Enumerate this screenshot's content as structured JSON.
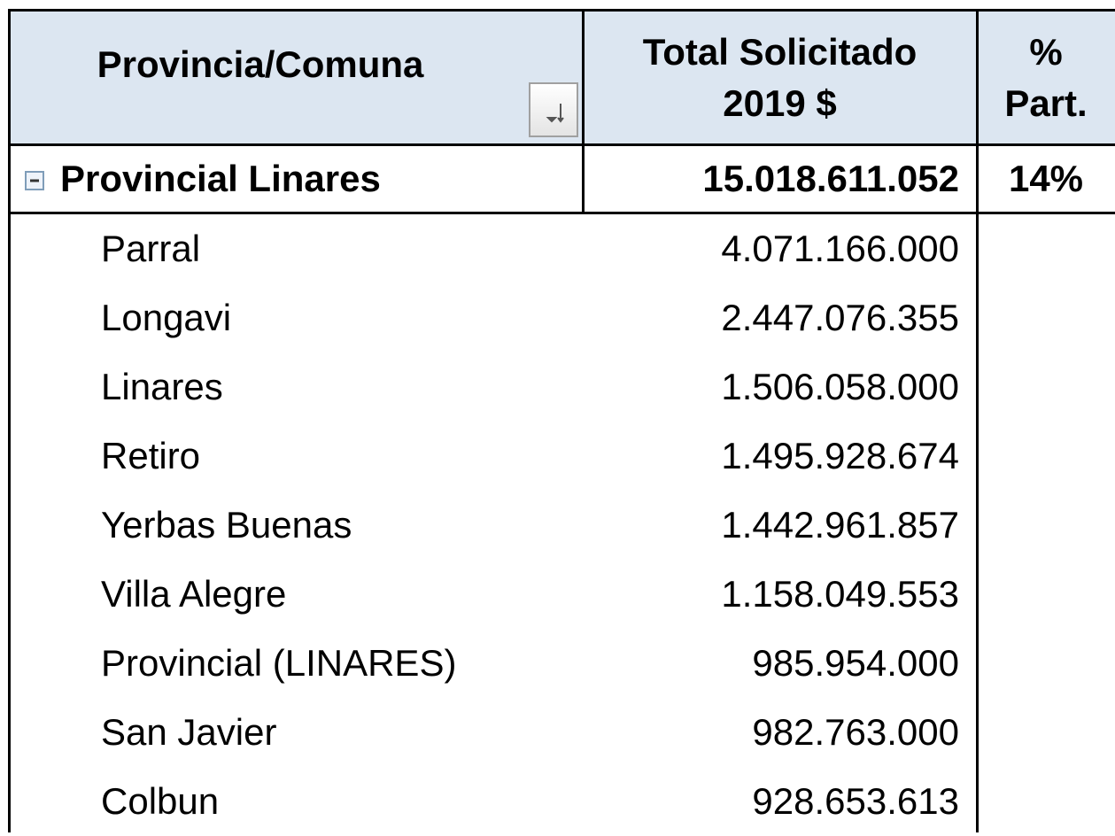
{
  "table": {
    "headers": [
      [
        "Provincia/Comuna"
      ],
      [
        "Total Solicitado",
        "2019 $"
      ],
      [
        "%",
        "Part."
      ]
    ],
    "group": {
      "name": "Provincial Linares",
      "total": "15.018.611.052",
      "share": "14%"
    },
    "rows": [
      [
        "Parral",
        "4.071.166.000"
      ],
      [
        "Longavi",
        "2.447.076.355"
      ],
      [
        "Linares",
        "1.506.058.000"
      ],
      [
        "Retiro",
        "1.495.928.674"
      ],
      [
        "Yerbas Buenas",
        "1.442.961.857"
      ],
      [
        "Villa Alegre",
        "1.158.049.553"
      ],
      [
        "Provincial (LINARES)",
        "985.954.000"
      ],
      [
        "San Javier",
        "982.763.000"
      ],
      [
        "Colbun",
        "928.653.613"
      ]
    ]
  }
}
